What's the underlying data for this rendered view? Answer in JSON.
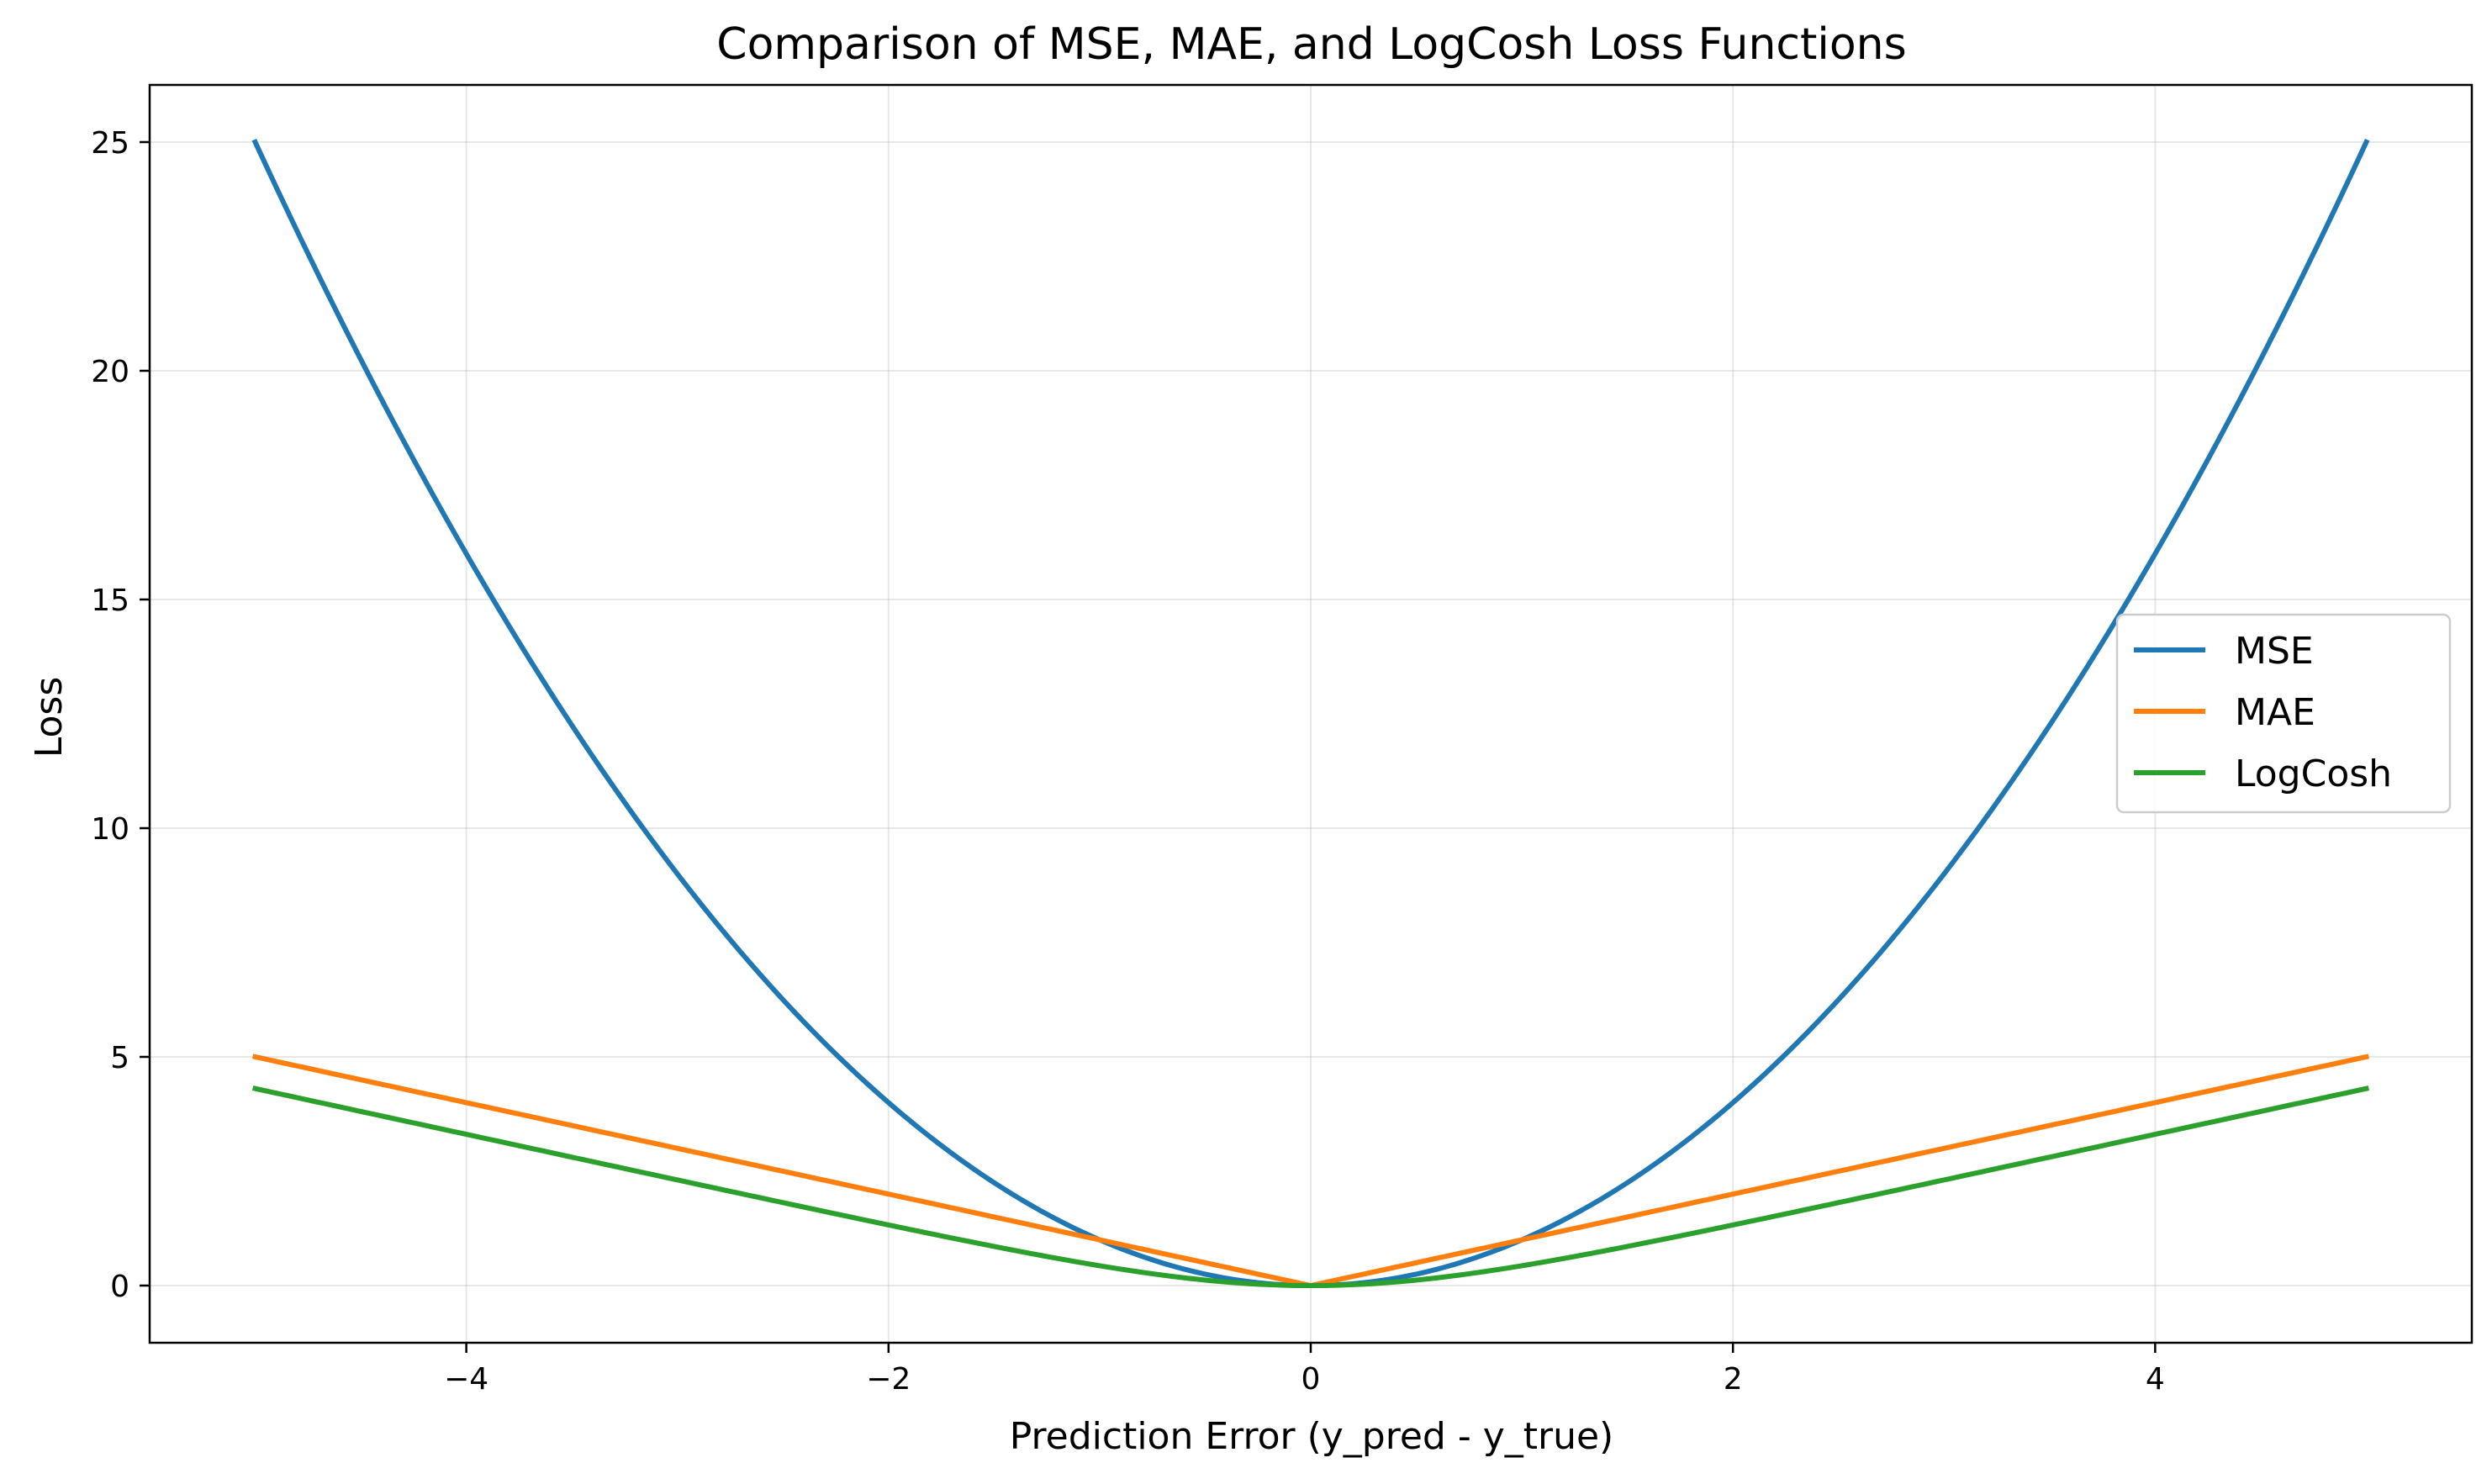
{
  "chart_data": {
    "type": "line",
    "title": "Comparison of MSE, MAE, and LogCosh Loss Functions",
    "xlabel": "Prediction Error (y_pred - y_true)",
    "ylabel": "Loss",
    "xlim": [
      -5.5,
      5.5
    ],
    "ylim": [
      -1.25,
      26.25
    ],
    "x_ticks": [
      -4,
      -2,
      0,
      2,
      4
    ],
    "x_tick_labels": [
      "−4",
      "−2",
      "0",
      "2",
      "4"
    ],
    "y_ticks": [
      0,
      5,
      10,
      15,
      20,
      25
    ],
    "y_tick_labels": [
      "0",
      "5",
      "10",
      "15",
      "20",
      "25"
    ],
    "grid": true,
    "legend_position": "center-right",
    "x": [
      -5,
      -4.5,
      -4,
      -3.5,
      -3,
      -2.5,
      -2,
      -1.5,
      -1,
      -0.5,
      0,
      0.5,
      1,
      1.5,
      2,
      2.5,
      3,
      3.5,
      4,
      4.5,
      5
    ],
    "series": [
      {
        "name": "MSE",
        "color": "#1f77b4",
        "values": [
          25,
          20.25,
          16,
          12.25,
          9,
          6.25,
          4,
          2.25,
          1,
          0.25,
          0,
          0.25,
          1,
          2.25,
          4,
          6.25,
          9,
          12.25,
          16,
          20.25,
          25
        ]
      },
      {
        "name": "MAE",
        "color": "#ff7f0e",
        "values": [
          5,
          4.5,
          4,
          3.5,
          3,
          2.5,
          2,
          1.5,
          1,
          0.5,
          0,
          0.5,
          1,
          1.5,
          2,
          2.5,
          3,
          3.5,
          4,
          4.5,
          5
        ]
      },
      {
        "name": "LogCosh",
        "color": "#2ca02c",
        "values": [
          4.31,
          3.81,
          3.31,
          2.82,
          2.32,
          1.83,
          1.33,
          0.87,
          0.43,
          0.12,
          0,
          0.12,
          0.43,
          0.87,
          1.33,
          1.83,
          2.32,
          2.82,
          3.31,
          3.81,
          4.31
        ]
      }
    ]
  }
}
